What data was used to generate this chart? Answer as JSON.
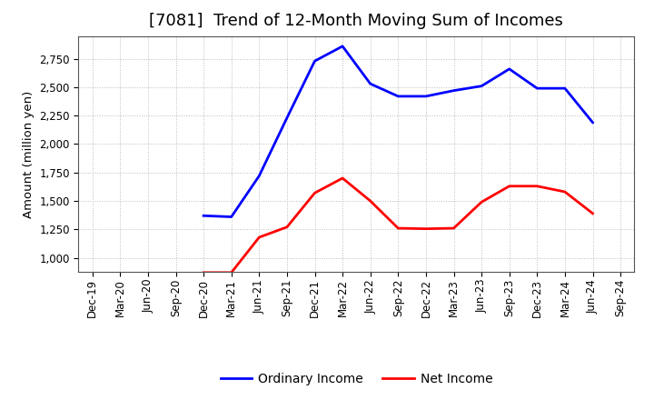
{
  "title": "[7081]  Trend of 12-Month Moving Sum of Incomes",
  "ylabel": "Amount (million yen)",
  "background_color": "#ffffff",
  "grid_color": "#bbbbbb",
  "ylim": [
    875,
    2950
  ],
  "yticks": [
    1000,
    1250,
    1500,
    1750,
    2000,
    2250,
    2500,
    2750
  ],
  "x_labels": [
    "Dec-19",
    "Mar-20",
    "Jun-20",
    "Sep-20",
    "Dec-20",
    "Mar-21",
    "Jun-21",
    "Sep-21",
    "Dec-21",
    "Mar-22",
    "Jun-22",
    "Sep-22",
    "Dec-22",
    "Mar-23",
    "Jun-23",
    "Sep-23",
    "Dec-23",
    "Mar-24",
    "Jun-24",
    "Sep-24"
  ],
  "ordinary_income": {
    "label": "Ordinary Income",
    "color": "#0000ff",
    "data_x": [
      "Dec-20",
      "Mar-21",
      "Jun-21",
      "Sep-21",
      "Dec-21",
      "Mar-22",
      "Jun-22",
      "Sep-22",
      "Dec-22",
      "Mar-23",
      "Jun-23",
      "Sep-23",
      "Dec-23",
      "Mar-24",
      "Jun-24"
    ],
    "data_y": [
      1370,
      1360,
      1720,
      2230,
      2730,
      2860,
      2530,
      2420,
      2420,
      2470,
      2510,
      2660,
      2490,
      2490,
      2190
    ]
  },
  "net_income": {
    "label": "Net Income",
    "color": "#ff0000",
    "data_x": [
      "Dec-20",
      "Mar-21",
      "Jun-21",
      "Sep-21",
      "Dec-21",
      "Mar-22",
      "Jun-22",
      "Sep-22",
      "Dec-22",
      "Mar-23",
      "Jun-23",
      "Sep-23",
      "Dec-23",
      "Mar-24",
      "Jun-24"
    ],
    "data_y": [
      870,
      870,
      1180,
      1270,
      1570,
      1700,
      1500,
      1260,
      1255,
      1260,
      1490,
      1630,
      1630,
      1580,
      1390
    ]
  },
  "title_fontsize": 13,
  "tick_fontsize": 8.5,
  "label_fontsize": 9.5,
  "legend_fontsize": 10,
  "line_width": 2.0
}
